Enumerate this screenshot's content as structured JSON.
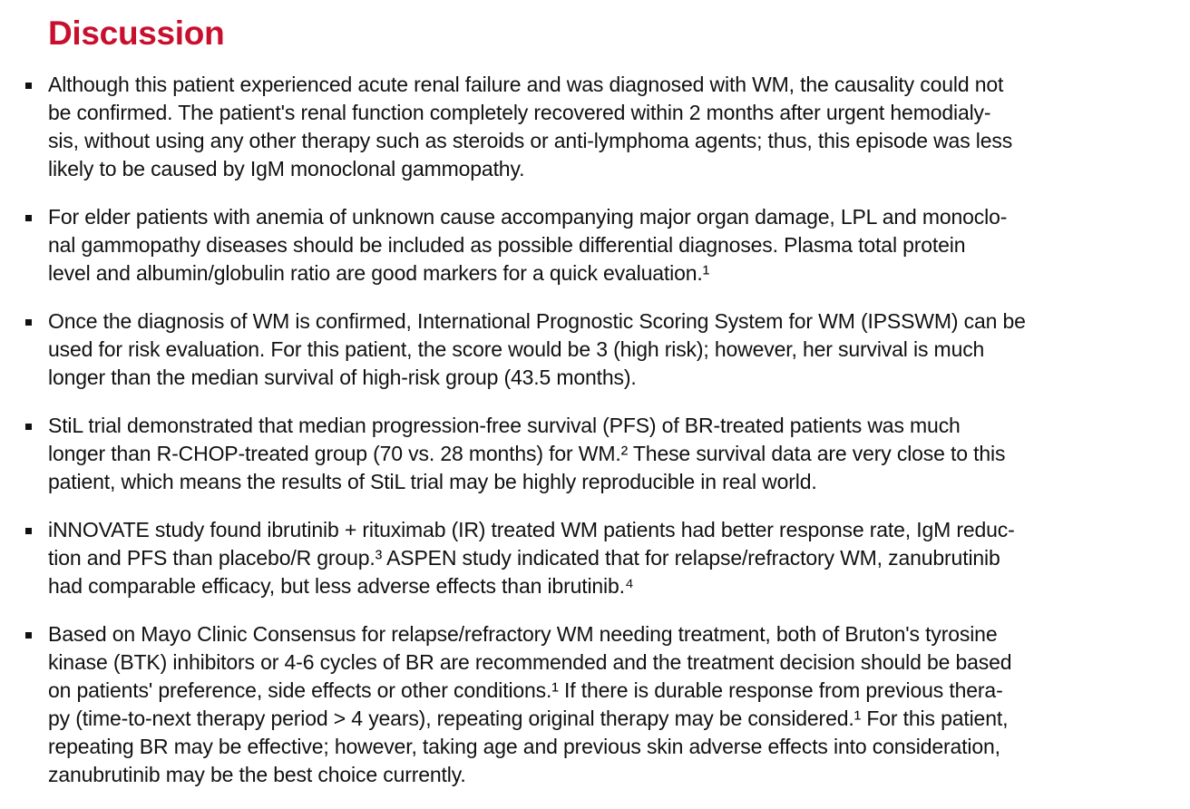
{
  "heading": "Discussion",
  "bullets": [
    {
      "lines": [
        "Although this patient experienced acute renal failure and was diagnosed with WM, the causality could not",
        "be confirmed. The patient's renal function completely recovered within 2 months after urgent hemodialy-",
        "sis, without using any other therapy such as steroids or anti-lymphoma agents; thus, this episode was less",
        "likely to be caused by IgM monoclonal gammopathy."
      ]
    },
    {
      "lines": [
        "For elder patients with anemia of unknown cause accompanying major organ damage, LPL and monoclo-",
        "nal gammopathy diseases should be included as possible differential diagnoses. Plasma total protein",
        "level and albumin/globulin ratio are good markers for a quick evaluation.¹"
      ]
    },
    {
      "lines": [
        "Once the diagnosis of WM is confirmed, International Prognostic Scoring System for WM (IPSSWM) can be",
        "used for risk evaluation. For this patient, the score would be 3 (high risk); however, her survival is much",
        "longer than the median survival of high-risk group (43.5 months)."
      ]
    },
    {
      "lines": [
        "StiL trial demonstrated that median progression-free survival (PFS) of BR-treated patients was much",
        "longer than R-CHOP-treated group (70 vs. 28 months) for WM.² These survival data are very close to this",
        "patient, which means the results of StiL trial may be highly reproducible in real world."
      ]
    },
    {
      "lines": [
        "iNNOVATE study found ibrutinib + rituximab (IR) treated WM patients had better response rate, IgM reduc-",
        "tion and PFS than placebo/R group.³ ASPEN study indicated that for relapse/refractory WM, zanubrutinib",
        "had comparable efficacy, but less adverse effects than ibrutinib.⁴"
      ]
    },
    {
      "lines": [
        "Based on Mayo Clinic Consensus for relapse/refractory WM needing treatment, both of Bruton's tyrosine",
        "kinase (BTK) inhibitors or 4-6 cycles of BR are recommended and the treatment decision should be based",
        "on patients' preference, side effects or other conditions.¹ If there is durable response from previous thera-",
        "py (time-to-next therapy period > 4 years), repeating original therapy may be considered.¹ For this patient,",
        "repeating BR may be effective; however, taking age and previous skin adverse effects into consideration,",
        "zanubrutinib may be the best choice currently."
      ]
    }
  ],
  "colors": {
    "heading": "#c8102e",
    "text": "#111111"
  }
}
